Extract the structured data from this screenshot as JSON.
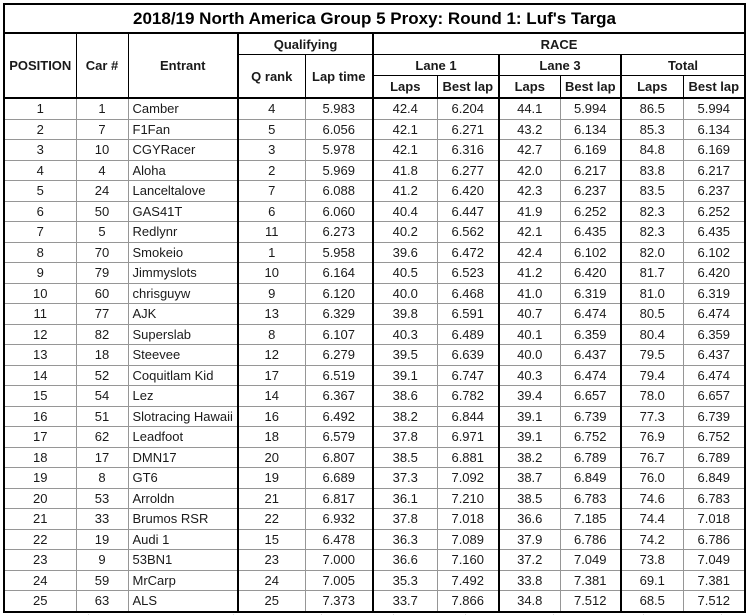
{
  "title": "2018/19 North America Group 5 Proxy: Round 1: Luf's Targa",
  "header": {
    "position": "POSITION",
    "car": "Car #",
    "entrant": "Entrant",
    "qualifying": "Qualifying",
    "q_rank": "Q rank",
    "lap_time": "Lap time",
    "race": "RACE",
    "lane1": "Lane 1",
    "lane3": "Lane 3",
    "total": "Total",
    "laps": "Laps",
    "best_lap": "Best lap"
  },
  "colors": {
    "border_dark": "#000000",
    "border_light": "#969696",
    "background": "#ffffff",
    "text": "#1a1a1a"
  },
  "rows": [
    [
      "1",
      "1",
      "Camber",
      "4",
      "5.983",
      "42.4",
      "6.204",
      "44.1",
      "5.994",
      "86.5",
      "5.994"
    ],
    [
      "2",
      "7",
      "F1Fan",
      "5",
      "6.056",
      "42.1",
      "6.271",
      "43.2",
      "6.134",
      "85.3",
      "6.134"
    ],
    [
      "3",
      "10",
      "CGYRacer",
      "3",
      "5.978",
      "42.1",
      "6.316",
      "42.7",
      "6.169",
      "84.8",
      "6.169"
    ],
    [
      "4",
      "4",
      "Aloha",
      "2",
      "5.969",
      "41.8",
      "6.277",
      "42.0",
      "6.217",
      "83.8",
      "6.217"
    ],
    [
      "5",
      "24",
      "Lanceltalove",
      "7",
      "6.088",
      "41.2",
      "6.420",
      "42.3",
      "6.237",
      "83.5",
      "6.237"
    ],
    [
      "6",
      "50",
      "GAS41T",
      "6",
      "6.060",
      "40.4",
      "6.447",
      "41.9",
      "6.252",
      "82.3",
      "6.252"
    ],
    [
      "7",
      "5",
      "Redlynr",
      "11",
      "6.273",
      "40.2",
      "6.562",
      "42.1",
      "6.435",
      "82.3",
      "6.435"
    ],
    [
      "8",
      "70",
      "Smokeio",
      "1",
      "5.958",
      "39.6",
      "6.472",
      "42.4",
      "6.102",
      "82.0",
      "6.102"
    ],
    [
      "9",
      "79",
      "Jimmyslots",
      "10",
      "6.164",
      "40.5",
      "6.523",
      "41.2",
      "6.420",
      "81.7",
      "6.420"
    ],
    [
      "10",
      "60",
      "chrisguyw",
      "9",
      "6.120",
      "40.0",
      "6.468",
      "41.0",
      "6.319",
      "81.0",
      "6.319"
    ],
    [
      "11",
      "77",
      "AJK",
      "13",
      "6.329",
      "39.8",
      "6.591",
      "40.7",
      "6.474",
      "80.5",
      "6.474"
    ],
    [
      "12",
      "82",
      "Superslab",
      "8",
      "6.107",
      "40.3",
      "6.489",
      "40.1",
      "6.359",
      "80.4",
      "6.359"
    ],
    [
      "13",
      "18",
      "Steevee",
      "12",
      "6.279",
      "39.5",
      "6.639",
      "40.0",
      "6.437",
      "79.5",
      "6.437"
    ],
    [
      "14",
      "52",
      "Coquitlam Kid",
      "17",
      "6.519",
      "39.1",
      "6.747",
      "40.3",
      "6.474",
      "79.4",
      "6.474"
    ],
    [
      "15",
      "54",
      "Lez",
      "14",
      "6.367",
      "38.6",
      "6.782",
      "39.4",
      "6.657",
      "78.0",
      "6.657"
    ],
    [
      "16",
      "51",
      "Slotracing Hawaii",
      "16",
      "6.492",
      "38.2",
      "6.844",
      "39.1",
      "6.739",
      "77.3",
      "6.739"
    ],
    [
      "17",
      "62",
      "Leadfoot",
      "18",
      "6.579",
      "37.8",
      "6.971",
      "39.1",
      "6.752",
      "76.9",
      "6.752"
    ],
    [
      "18",
      "17",
      "DMN17",
      "20",
      "6.807",
      "38.5",
      "6.881",
      "38.2",
      "6.789",
      "76.7",
      "6.789"
    ],
    [
      "19",
      "8",
      "GT6",
      "19",
      "6.689",
      "37.3",
      "7.092",
      "38.7",
      "6.849",
      "76.0",
      "6.849"
    ],
    [
      "20",
      "53",
      "Arroldn",
      "21",
      "6.817",
      "36.1",
      "7.210",
      "38.5",
      "6.783",
      "74.6",
      "6.783"
    ],
    [
      "21",
      "33",
      "Brumos RSR",
      "22",
      "6.932",
      "37.8",
      "7.018",
      "36.6",
      "7.185",
      "74.4",
      "7.018"
    ],
    [
      "22",
      "19",
      "Audi 1",
      "15",
      "6.478",
      "36.3",
      "7.089",
      "37.9",
      "6.786",
      "74.2",
      "6.786"
    ],
    [
      "23",
      "9",
      "53BN1",
      "23",
      "7.000",
      "36.6",
      "7.160",
      "37.2",
      "7.049",
      "73.8",
      "7.049"
    ],
    [
      "24",
      "59",
      "MrCarp",
      "24",
      "7.005",
      "35.3",
      "7.492",
      "33.8",
      "7.381",
      "69.1",
      "7.381"
    ],
    [
      "25",
      "63",
      "ALS",
      "25",
      "7.373",
      "33.7",
      "7.866",
      "34.8",
      "7.512",
      "68.5",
      "7.512"
    ]
  ],
  "below_grid_stub_positions": [
    85,
    230,
    318,
    390,
    462,
    550,
    640,
    718
  ]
}
